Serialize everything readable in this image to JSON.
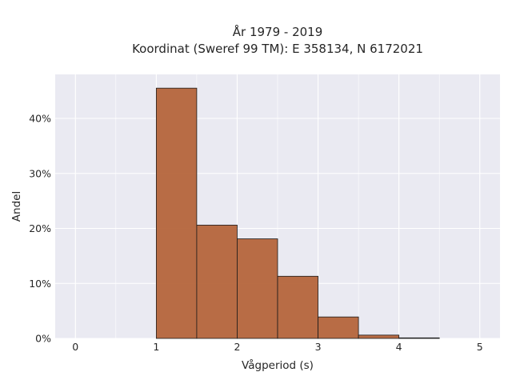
{
  "chart_data": {
    "type": "bar",
    "title_line1": "År 1979 - 2019",
    "title_line2": "Koordinat (Sweref 99 TM): E 358134, N 6172021",
    "xlabel": "Vågperiod (s)",
    "ylabel": "Andel",
    "bin_edges": [
      1.0,
      1.5,
      2.0,
      2.5,
      3.0,
      3.5,
      4.0,
      4.5
    ],
    "values": [
      45.5,
      20.6,
      18.1,
      11.3,
      3.9,
      0.6,
      0.1
    ],
    "xlim": [
      -0.25,
      5.25
    ],
    "ylim": [
      0,
      48
    ],
    "x_ticks": [
      0,
      1,
      2,
      3,
      4,
      5
    ],
    "x_tick_labels": [
      "0",
      "1",
      "2",
      "3",
      "4",
      "5"
    ],
    "y_ticks": [
      0,
      10,
      20,
      30,
      40
    ],
    "y_tick_labels": [
      "0%",
      "10%",
      "20%",
      "30%",
      "40%"
    ],
    "grid": true,
    "colors": {
      "bar_fill": "#b5653b",
      "bar_edge": "#1a1a1a",
      "plot_bg": "#eaeaf2",
      "grid": "#ffffff"
    }
  }
}
